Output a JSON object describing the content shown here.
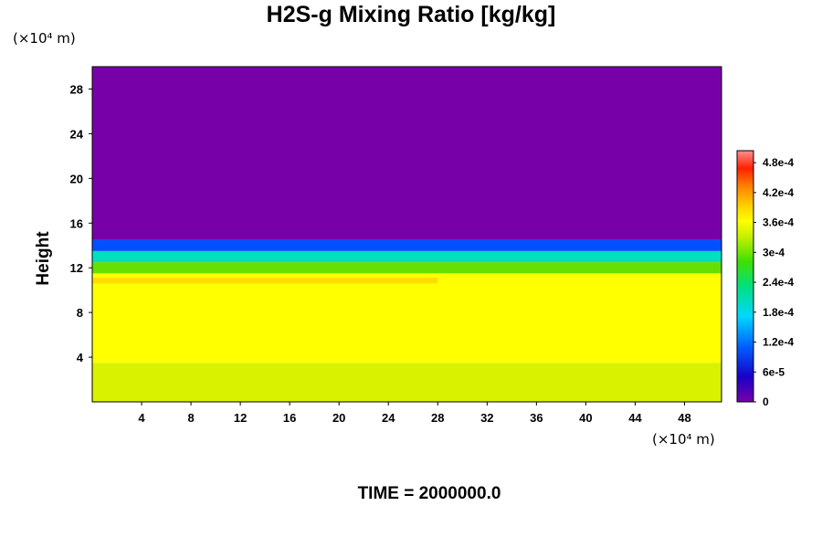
{
  "chart_data": {
    "type": "heatmap",
    "title": "H2S-g Mixing Ratio [kg/kg]",
    "ylabel": "Height",
    "y_unit": "(×10⁴ m)",
    "x_unit": "(×10⁴ m)",
    "xlim": [
      0,
      51
    ],
    "ylim": [
      0,
      30
    ],
    "x_ticks": [
      "4",
      "8",
      "12",
      "16",
      "20",
      "24",
      "28",
      "32",
      "36",
      "40",
      "44",
      "48"
    ],
    "x_tick_values": [
      4,
      8,
      12,
      16,
      20,
      24,
      28,
      32,
      36,
      40,
      44,
      48
    ],
    "y_ticks": [
      "4",
      "8",
      "12",
      "16",
      "20",
      "24",
      "28"
    ],
    "y_tick_values": [
      4,
      8,
      12,
      16,
      20,
      24,
      28
    ],
    "colorbar": {
      "range": [
        0,
        0.000504
      ],
      "labels": [
        "0",
        "6e-5",
        "1.2e-4",
        "1.8e-4",
        "2.4e-4",
        "3e-4",
        "3.6e-4",
        "4.2e-4",
        "4.8e-4"
      ],
      "label_values": [
        0,
        6e-05,
        0.00012,
        0.00018,
        0.00024,
        0.0003,
        0.00036,
        0.00042,
        0.00048
      ]
    },
    "regions": [
      {
        "height_range": [
          0,
          3.5
        ],
        "value": 0.00033,
        "color": "#d9f200"
      },
      {
        "height_range": [
          3.5,
          11.5
        ],
        "value": 0.00036,
        "color": "#ffff00"
      },
      {
        "height_range": [
          10.6,
          11.1
        ],
        "x_range": [
          0,
          28
        ],
        "value": 0.00039,
        "color": "#ffdd00"
      },
      {
        "height_range": [
          11.5,
          12.5
        ],
        "value": 0.00027,
        "color": "#66e000"
      },
      {
        "height_range": [
          12.5,
          13.5
        ],
        "value": 0.00018,
        "color": "#00e0c0"
      },
      {
        "height_range": [
          13.5,
          14.5
        ],
        "value": 9e-05,
        "color": "#0050ff"
      },
      {
        "height_range": [
          14.5,
          30
        ],
        "value": 0,
        "color": "#7800a8"
      }
    ]
  },
  "footer": {
    "time_label": "TIME = 2000000.0"
  }
}
